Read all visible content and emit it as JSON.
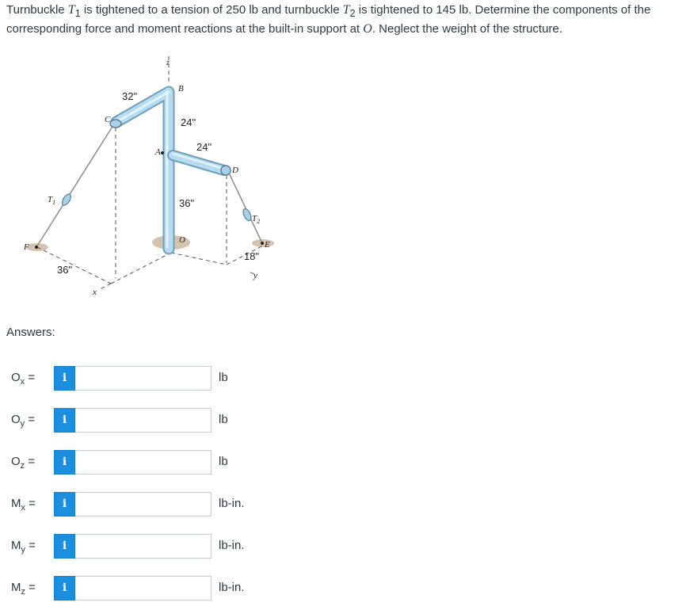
{
  "question": {
    "t_text1": "Turnbuckle ",
    "t1_sym": "T",
    "t1_sub": "1",
    "t_text2": " is tightened to a tension of 250 lb and turnbuckle ",
    "t2_sym": "T",
    "t2_sub": "2",
    "t_text3": " is tightened to 145 lb. Determine the components of the corresponding force and moment reactions at the built-in support at ",
    "o_sym": "O",
    "t_text4": ". Neglect the weight of the structure."
  },
  "figure": {
    "dims": {
      "d32": "32\"",
      "d24a": "24\"",
      "d24b": "24\"",
      "d36a": "36\"",
      "d36b": "36\"",
      "d18": "18\""
    },
    "points": {
      "z": "z",
      "B": "B",
      "C": "C",
      "A": "A",
      "D": "D",
      "O": "O",
      "F": "F",
      "E": "E",
      "x": "x",
      "y": "y"
    },
    "t1": {
      "sym": "T",
      "sub": "1"
    },
    "t2": {
      "sym": "T",
      "sub": "2"
    }
  },
  "answers_title": "Answers:",
  "rows": [
    {
      "sym": "O",
      "sub": "x",
      "eq": " =",
      "unit": "lb",
      "value": ""
    },
    {
      "sym": "O",
      "sub": "y",
      "eq": " =",
      "unit": "lb",
      "value": ""
    },
    {
      "sym": "O",
      "sub": "z",
      "eq": " =",
      "unit": "lb",
      "value": ""
    },
    {
      "sym": "M",
      "sub": "x",
      "eq": " =",
      "unit": "lb-in.",
      "value": ""
    },
    {
      "sym": "M",
      "sub": "y",
      "eq": " =",
      "unit": "lb-in.",
      "value": ""
    },
    {
      "sym": "M",
      "sub": "z",
      "eq": " =",
      "unit": "lb-in.",
      "value": ""
    }
  ],
  "info_label": "i",
  "colors": {
    "info_button": "#1a8fe0",
    "text": "#2d3b45",
    "input_border": "#c7cdd1",
    "pipe": "#a9d3ea"
  }
}
